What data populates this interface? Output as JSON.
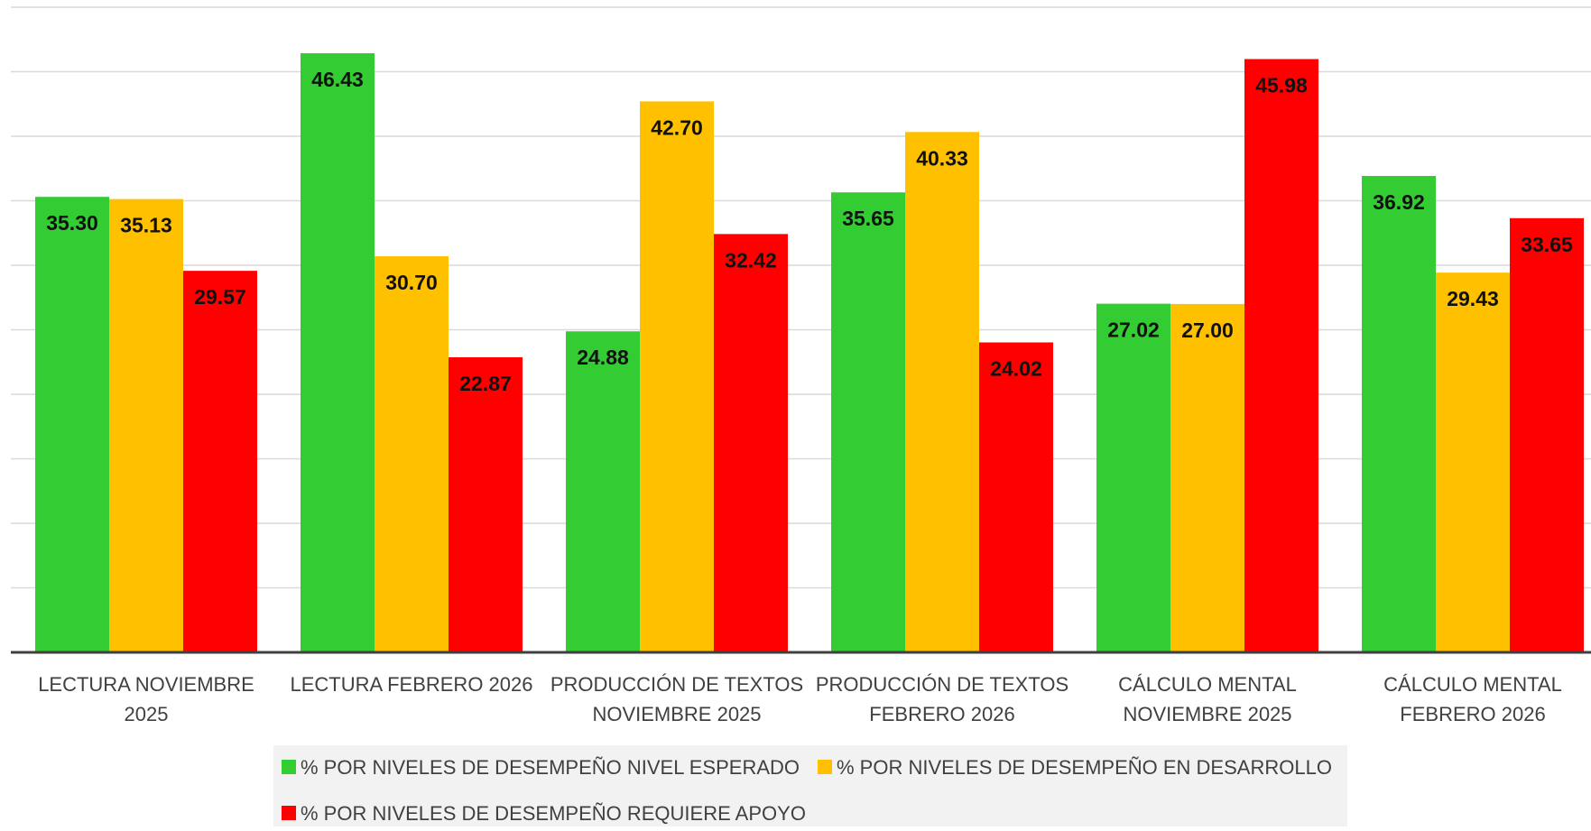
{
  "chart_data": {
    "type": "bar",
    "title": "",
    "xlabel": "",
    "ylabel": "",
    "ylim": [
      0,
      50
    ],
    "grid": true,
    "legend_position": "bottom",
    "categories": [
      [
        "LECTURA NOVIEMBRE",
        "2025"
      ],
      [
        "LECTURA FEBRERO 2026"
      ],
      [
        "PRODUCCIÓN DE TEXTOS",
        "NOVIEMBRE 2025"
      ],
      [
        "PRODUCCIÓN DE TEXTOS",
        "FEBRERO 2026"
      ],
      [
        "CÁLCULO MENTAL",
        "NOVIEMBRE 2025"
      ],
      [
        "CÁLCULO MENTAL",
        "FEBRERO 2026"
      ]
    ],
    "series": [
      {
        "name": "% POR NIVELES DE DESEMPEÑO NIVEL ESPERADO",
        "color": "#33cc33",
        "values": [
          35.3,
          46.43,
          24.88,
          35.65,
          27.02,
          36.92
        ],
        "labels": [
          "35.30",
          "46.43",
          "24.88",
          "35.65",
          "27.02",
          "36.92"
        ]
      },
      {
        "name": "% POR NIVELES DE DESEMPEÑO EN DESARROLLO",
        "color": "#ffc000",
        "values": [
          35.13,
          30.7,
          42.7,
          40.33,
          27.0,
          29.43
        ],
        "labels": [
          "35.13",
          "30.70",
          "42.70",
          "40.33",
          "27.00",
          "29.43"
        ]
      },
      {
        "name": "% POR NIVELES DE DESEMPEÑO REQUIERE APOYO",
        "color": "#ff0000",
        "values": [
          29.57,
          22.87,
          32.42,
          24.02,
          45.98,
          33.65
        ],
        "labels": [
          "29.57",
          "22.87",
          "32.42",
          "24.02",
          "45.98",
          "33.65"
        ]
      }
    ]
  }
}
